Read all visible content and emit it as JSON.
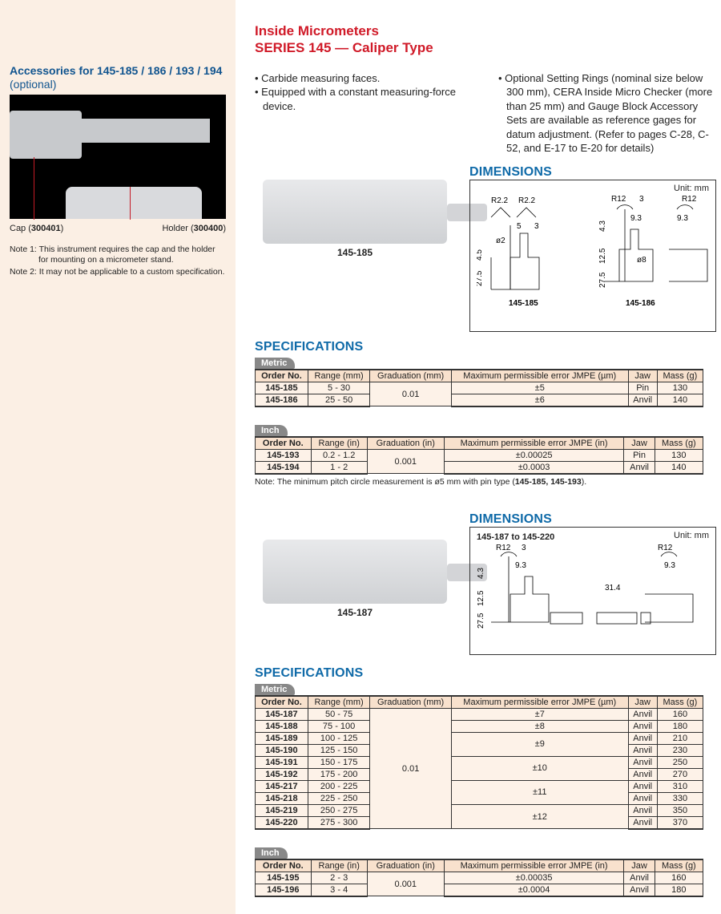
{
  "title_line1": "Inside Micrometers",
  "title_line2": "SERIES 145 — Caliper Type",
  "sidebar": {
    "accessory_title": "Accessories for 145-185 / 186 / 193 / 194",
    "accessory_sub": "(optional)",
    "cap_label": "Cap (",
    "cap_code": "300401",
    "cap_close": ")",
    "holder_label": "Holder (",
    "holder_code": "300400",
    "holder_close": ")",
    "note1": "Note 1: This instrument requires the cap and the holder for mounting on a micrometer stand.",
    "note2": "Note 2: It may not be applicable to a custom specification."
  },
  "bullets": {
    "left": [
      "Carbide measuring faces.",
      "Equipped with a constant measuring-force device."
    ],
    "right": [
      "Optional Setting Rings (nominal size below 300 mm), CERA Inside Micro Checker (more than 25 mm) and  Gauge Block Accessory Sets are available as reference gages for datum adjustment. (Refer to pages C-28, C-52, and E-17 to E-20 for details)"
    ]
  },
  "labels": {
    "dimensions": "DIMENSIONS",
    "specifications": "SPECIFICATIONS",
    "metric": "Metric",
    "inch": "Inch",
    "unit_mm": "Unit: mm"
  },
  "dim1": {
    "range_label": "145-187 to 145-220",
    "p185": "145-185",
    "p186": "145-186",
    "R22": "R2.2",
    "R12": "R12",
    "d2": "ø2",
    "d8": "ø8",
    "v5": "5",
    "v3": "3",
    "v45": "4.5",
    "v275": "27.5",
    "v43": "4.3",
    "v93": "9.3",
    "v125": "12.5",
    "v314": "31.4"
  },
  "prod1_label": "145-185",
  "prod2_label": "145-187",
  "table1_metric": {
    "headers": [
      "Order No.",
      "Range (mm)",
      "Graduation (mm)",
      "Maximum permissible error JMPE (µm)",
      "Jaw",
      "Mass (g)"
    ],
    "rows": [
      [
        "145-185",
        "5 - 30",
        "0.01",
        "±5",
        "Pin",
        "130"
      ],
      [
        "145-186",
        "25 - 50",
        "",
        "±6",
        "Anvil",
        "140"
      ]
    ],
    "grad_rowspan": 2
  },
  "table1_inch": {
    "headers": [
      "Order No.",
      "Range (in)",
      "Graduation (in)",
      "Maximum permissible error JMPE (in)",
      "Jaw",
      "Mass (g)"
    ],
    "rows": [
      [
        "145-193",
        "0.2 - 1.2",
        "0.001",
        "±0.00025",
        "Pin",
        "130"
      ],
      [
        "145-194",
        "1 - 2",
        "",
        "±0.0003",
        "Anvil",
        "140"
      ]
    ],
    "grad_rowspan": 2
  },
  "table1_note": "Note: The minimum pitch circle measurement is ø5 mm with pin type (145-185, 145-193).",
  "table2_metric": {
    "headers": [
      "Order No.",
      "Range (mm)",
      "Graduation (mm)",
      "Maximum permissible error JMPE (µm)",
      "Jaw",
      "Mass (g)"
    ],
    "rows": [
      [
        "145-187",
        "50 - 75",
        "0.01",
        "±7",
        "Anvil",
        "160"
      ],
      [
        "145-188",
        "75 - 100",
        "",
        "±8",
        "Anvil",
        "180"
      ],
      [
        "145-189",
        "100 - 125",
        "",
        "±9",
        "Anvil",
        "210"
      ],
      [
        "145-190",
        "125 - 150",
        "",
        "",
        "Anvil",
        "230"
      ],
      [
        "145-191",
        "150 - 175",
        "",
        "±10",
        "Anvil",
        "250"
      ],
      [
        "145-192",
        "175 - 200",
        "",
        "",
        "Anvil",
        "270"
      ],
      [
        "145-217",
        "200 - 225",
        "",
        "±11",
        "Anvil",
        "310"
      ],
      [
        "145-218",
        "225 - 250",
        "",
        "",
        "Anvil",
        "330"
      ],
      [
        "145-219",
        "250 - 275",
        "",
        "±12",
        "Anvil",
        "350"
      ],
      [
        "145-220",
        "275 - 300",
        "",
        "",
        "Anvil",
        "370"
      ]
    ],
    "grad_rowspan": 10,
    "err_spans": [
      1,
      1,
      2,
      0,
      2,
      0,
      2,
      0,
      2,
      0
    ]
  },
  "table2_inch": {
    "headers": [
      "Order No.",
      "Range (in)",
      "Graduation (in)",
      "Maximum permissible error JMPE (in)",
      "Jaw",
      "Mass (g)"
    ],
    "rows": [
      [
        "145-195",
        "2 - 3",
        "0.001",
        "±0.00035",
        "Anvil",
        "160"
      ],
      [
        "145-196",
        "3 - 4",
        "",
        "±0.0004",
        "Anvil",
        "180"
      ]
    ],
    "grad_rowspan": 2
  },
  "colors": {
    "red": "#d01a28",
    "blue": "#0f6aa8",
    "darkblue": "#10548f",
    "sidebar_bg": "#fbefe4",
    "th_bg": "#f8e1cd",
    "td_bg": "#fdf2e8"
  }
}
